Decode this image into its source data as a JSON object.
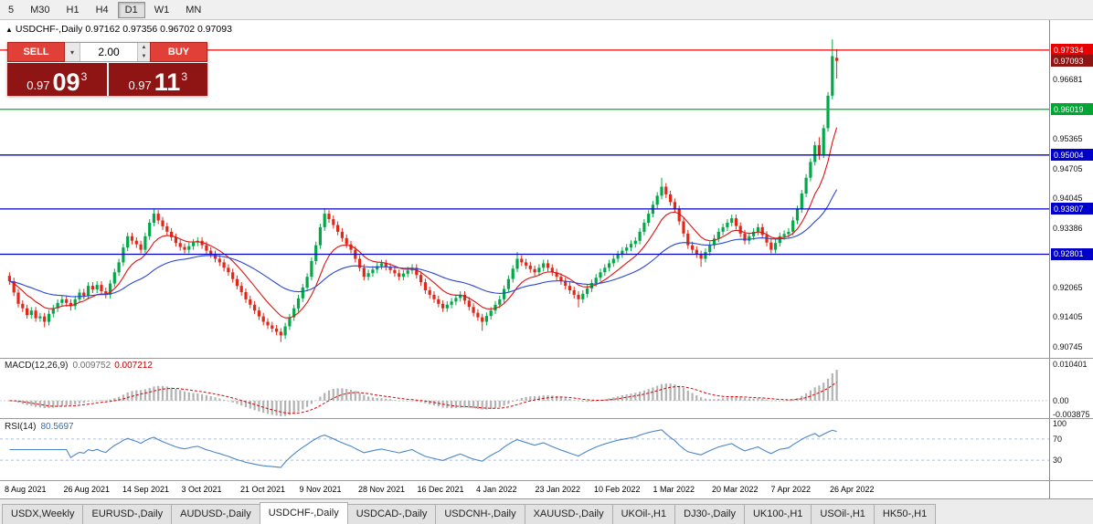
{
  "toolbar": {
    "timeframes": [
      {
        "label": "5",
        "active": false
      },
      {
        "label": "M30",
        "active": false
      },
      {
        "label": "H1",
        "active": false
      },
      {
        "label": "H4",
        "active": false
      },
      {
        "label": "D1",
        "active": true
      },
      {
        "label": "W1",
        "active": false
      },
      {
        "label": "MN",
        "active": false
      }
    ]
  },
  "chart": {
    "collapse_marker": "▲",
    "symbol": "USDCHF-,Daily",
    "ohlc": "0.97162 0.97356 0.96702 0.97093"
  },
  "trade_panel": {
    "sell_label": "SELL",
    "buy_label": "BUY",
    "volume": "2.00",
    "sell_price": {
      "prefix": "0.97",
      "big": "09",
      "sup": "3"
    },
    "buy_price": {
      "prefix": "0.97",
      "big": "11",
      "sup": "3"
    }
  },
  "tabs": {
    "items": [
      {
        "label": "USDX,Weekly",
        "active": false
      },
      {
        "label": "EURUSD-,Daily",
        "active": false
      },
      {
        "label": "AUDUSD-,Daily",
        "active": false
      },
      {
        "label": "USDCHF-,Daily",
        "active": true
      },
      {
        "label": "USDCAD-,Daily",
        "active": false
      },
      {
        "label": "USDCNH-,Daily",
        "active": false
      },
      {
        "label": "XAUUSD-,Daily",
        "active": false
      },
      {
        "label": "UKOil-,H1",
        "active": false
      },
      {
        "label": "DJ30-,Daily",
        "active": false
      },
      {
        "label": "UK100-,H1",
        "active": false
      },
      {
        "label": "USOil-,H1",
        "active": false
      },
      {
        "label": "HK50-,H1",
        "active": false
      }
    ]
  },
  "chart_data": {
    "type": "candlestick",
    "symbol": "USDCHF-",
    "timeframe": "Daily",
    "last_candle": {
      "open": 0.97162,
      "high": 0.97356,
      "low": 0.96702,
      "close": 0.97093
    },
    "price_range": [
      0.98,
      0.905
    ],
    "colors": {
      "up": "#00a847",
      "down": "#e22718",
      "macd_hist": "#b2b2b2",
      "macd_signal": "#d40000",
      "rsi_line": "#4b86c8",
      "rsi_levels": "#b0bfd8"
    },
    "hlines": [
      {
        "price": 0.97334,
        "color": "#e80000"
      },
      {
        "price": 0.96019,
        "color": "#00c838"
      },
      {
        "price": 0.95004,
        "color": "#0000c8"
      },
      {
        "price": 0.93807,
        "color": "#0000c8"
      },
      {
        "price": 0.92801,
        "color": "#0000c8"
      }
    ],
    "moving_averages": [
      {
        "period": 10,
        "color": "#dd1111"
      },
      {
        "period": 34,
        "color": "#2a46d4"
      }
    ],
    "price_axis": {
      "plain": [
        0.96681,
        0.95365,
        0.94705,
        0.94045,
        0.93386,
        0.92065,
        0.91405,
        0.90745
      ],
      "tags": [
        {
          "price": 0.97334,
          "label": "0.97334",
          "color": "#e80000"
        },
        {
          "price": 0.97093,
          "label": "0.97093",
          "color": "#8f1414"
        },
        {
          "price": 0.96019,
          "label": "0.96019",
          "color": "#00a535"
        },
        {
          "price": 0.95004,
          "label": "0.95004",
          "color": "#0000c8"
        },
        {
          "price": 0.93807,
          "label": "0.93807",
          "color": "#0000c8"
        },
        {
          "price": 0.92801,
          "label": "0.92801",
          "color": "#0000c8"
        }
      ]
    },
    "macd": {
      "label": "MACD(12,26,9)",
      "value_main": "0.009752",
      "value_signal": "0.007212",
      "params": [
        12,
        26,
        9
      ],
      "range": [
        0.012,
        -0.005
      ],
      "axis": [
        {
          "value": 0.010401,
          "label": "0.010401"
        },
        {
          "value": 0,
          "label": "0.00"
        },
        {
          "value": -0.003875,
          "label": "-0.003875"
        }
      ]
    },
    "rsi": {
      "label": "RSI(14)",
      "value_text": "80.5697",
      "period": 14,
      "level_lines": [
        70,
        30
      ],
      "axis": [
        {
          "value": 100,
          "label": "100"
        },
        {
          "value": 70,
          "label": "70"
        },
        {
          "value": 30,
          "label": "30"
        }
      ]
    },
    "dates": [
      "8 Aug 2021",
      "26 Aug 2021",
      "14 Sep 2021",
      "3 Oct 2021",
      "21 Oct 2021",
      "9 Nov 2021",
      "28 Nov 2021",
      "16 Dec 2021",
      "4 Jan 2022",
      "23 Jan 2022",
      "10 Feb 2022",
      "1 Mar 2022",
      "20 Mar 2022",
      "7 Apr 2022",
      "26 Apr 2022"
    ],
    "candles": [
      [
        0.9232,
        0.924,
        0.9212,
        0.922
      ],
      [
        0.922,
        0.9228,
        0.9187,
        0.9195
      ],
      [
        0.9195,
        0.9203,
        0.9162,
        0.917
      ],
      [
        0.917,
        0.9178,
        0.9152,
        0.916
      ],
      [
        0.916,
        0.9168,
        0.9137,
        0.9145
      ],
      [
        0.9145,
        0.9163,
        0.9137,
        0.9155
      ],
      [
        0.9155,
        0.9163,
        0.913,
        0.9138
      ],
      [
        0.9138,
        0.915,
        0.913,
        0.9142
      ],
      [
        0.9142,
        0.915,
        0.9118,
        0.913
      ],
      [
        0.913,
        0.9156,
        0.9122,
        0.9148
      ],
      [
        0.9148,
        0.9168,
        0.914,
        0.916
      ],
      [
        0.916,
        0.918,
        0.9152,
        0.9172
      ],
      [
        0.9172,
        0.9188,
        0.9164,
        0.918
      ],
      [
        0.918,
        0.9188,
        0.9164,
        0.9172
      ],
      [
        0.9172,
        0.918,
        0.9155,
        0.9165
      ],
      [
        0.9165,
        0.9188,
        0.9157,
        0.918
      ],
      [
        0.918,
        0.9203,
        0.9172,
        0.9195
      ],
      [
        0.9195,
        0.9203,
        0.918,
        0.9188
      ],
      [
        0.9188,
        0.9218,
        0.918,
        0.921
      ],
      [
        0.921,
        0.9218,
        0.9194,
        0.9202
      ],
      [
        0.9202,
        0.922,
        0.9194,
        0.9212
      ],
      [
        0.9212,
        0.922,
        0.919,
        0.9198
      ],
      [
        0.9198,
        0.9206,
        0.9182,
        0.919
      ],
      [
        0.919,
        0.9223,
        0.9182,
        0.9215
      ],
      [
        0.9215,
        0.9248,
        0.9207,
        0.924
      ],
      [
        0.924,
        0.927,
        0.9232,
        0.9262
      ],
      [
        0.9262,
        0.9303,
        0.9254,
        0.9295
      ],
      [
        0.9295,
        0.9328,
        0.9287,
        0.932
      ],
      [
        0.932,
        0.9328,
        0.9302,
        0.931
      ],
      [
        0.931,
        0.9318,
        0.9294,
        0.9302
      ],
      [
        0.9302,
        0.931,
        0.9282,
        0.929
      ],
      [
        0.929,
        0.9328,
        0.9282,
        0.932
      ],
      [
        0.932,
        0.9358,
        0.9312,
        0.935
      ],
      [
        0.935,
        0.938,
        0.9342,
        0.937
      ],
      [
        0.937,
        0.9378,
        0.9347,
        0.9355
      ],
      [
        0.9355,
        0.9363,
        0.9334,
        0.9342
      ],
      [
        0.9342,
        0.935,
        0.9322,
        0.933
      ],
      [
        0.933,
        0.9338,
        0.931,
        0.9318
      ],
      [
        0.9318,
        0.9326,
        0.9297,
        0.9305
      ],
      [
        0.9305,
        0.9313,
        0.9288,
        0.9296
      ],
      [
        0.9296,
        0.9304,
        0.9282,
        0.929
      ],
      [
        0.929,
        0.9306,
        0.9282,
        0.9298
      ],
      [
        0.9298,
        0.9314,
        0.929,
        0.9306
      ],
      [
        0.9306,
        0.9318,
        0.9298,
        0.931
      ],
      [
        0.931,
        0.9318,
        0.9292,
        0.93
      ],
      [
        0.93,
        0.9308,
        0.928,
        0.9288
      ],
      [
        0.9288,
        0.9296,
        0.9272,
        0.928
      ],
      [
        0.928,
        0.9288,
        0.9262,
        0.927
      ],
      [
        0.927,
        0.9278,
        0.9254,
        0.9262
      ],
      [
        0.9262,
        0.927,
        0.9242,
        0.925
      ],
      [
        0.925,
        0.9258,
        0.9232,
        0.924
      ],
      [
        0.924,
        0.9248,
        0.9217,
        0.9225
      ],
      [
        0.9225,
        0.9233,
        0.9202,
        0.921
      ],
      [
        0.921,
        0.9218,
        0.9188,
        0.9196
      ],
      [
        0.9196,
        0.9204,
        0.9172,
        0.918
      ],
      [
        0.918,
        0.9188,
        0.916,
        0.9168
      ],
      [
        0.9168,
        0.9176,
        0.9147,
        0.9155
      ],
      [
        0.9155,
        0.9163,
        0.9134,
        0.9142
      ],
      [
        0.9142,
        0.915,
        0.9122,
        0.913
      ],
      [
        0.913,
        0.9138,
        0.9114,
        0.9122
      ],
      [
        0.9122,
        0.913,
        0.9107,
        0.9115
      ],
      [
        0.9115,
        0.9123,
        0.91,
        0.9108
      ],
      [
        0.9108,
        0.9116,
        0.9085,
        0.91
      ],
      [
        0.91,
        0.9128,
        0.9092,
        0.912
      ],
      [
        0.912,
        0.9148,
        0.9112,
        0.914
      ],
      [
        0.914,
        0.9168,
        0.9132,
        0.916
      ],
      [
        0.916,
        0.919,
        0.9152,
        0.9182
      ],
      [
        0.9182,
        0.9214,
        0.9174,
        0.9206
      ],
      [
        0.9206,
        0.9238,
        0.9198,
        0.923
      ],
      [
        0.923,
        0.9273,
        0.9222,
        0.9265
      ],
      [
        0.9265,
        0.9308,
        0.9257,
        0.93
      ],
      [
        0.93,
        0.9348,
        0.9292,
        0.934
      ],
      [
        0.934,
        0.9382,
        0.9332,
        0.937
      ],
      [
        0.937,
        0.9378,
        0.935,
        0.9358
      ],
      [
        0.9358,
        0.9366,
        0.9337,
        0.9345
      ],
      [
        0.9345,
        0.9353,
        0.9322,
        0.933
      ],
      [
        0.933,
        0.9338,
        0.9308,
        0.9316
      ],
      [
        0.9316,
        0.9324,
        0.9294,
        0.9302
      ],
      [
        0.9302,
        0.931,
        0.9282,
        0.929
      ],
      [
        0.929,
        0.9298,
        0.9262,
        0.927
      ],
      [
        0.927,
        0.9278,
        0.9242,
        0.925
      ],
      [
        0.925,
        0.9258,
        0.9222,
        0.923
      ],
      [
        0.923,
        0.9246,
        0.9222,
        0.9238
      ],
      [
        0.9238,
        0.9254,
        0.923,
        0.9246
      ],
      [
        0.9246,
        0.9262,
        0.9238,
        0.9254
      ],
      [
        0.9254,
        0.9268,
        0.9246,
        0.926
      ],
      [
        0.926,
        0.9268,
        0.9244,
        0.9252
      ],
      [
        0.9252,
        0.926,
        0.9237,
        0.9245
      ],
      [
        0.9245,
        0.9253,
        0.923,
        0.9238
      ],
      [
        0.9238,
        0.9246,
        0.9222,
        0.923
      ],
      [
        0.923,
        0.9245,
        0.9222,
        0.9237
      ],
      [
        0.9237,
        0.9252,
        0.9229,
        0.9244
      ],
      [
        0.9244,
        0.9258,
        0.9236,
        0.925
      ],
      [
        0.925,
        0.9258,
        0.9226,
        0.9234
      ],
      [
        0.9234,
        0.9242,
        0.921,
        0.9218
      ],
      [
        0.9218,
        0.9226,
        0.9192,
        0.92
      ],
      [
        0.92,
        0.9208,
        0.9182,
        0.919
      ],
      [
        0.919,
        0.9198,
        0.9172,
        0.918
      ],
      [
        0.918,
        0.9188,
        0.9162,
        0.917
      ],
      [
        0.917,
        0.9178,
        0.9152,
        0.916
      ],
      [
        0.916,
        0.9176,
        0.9152,
        0.9168
      ],
      [
        0.9168,
        0.9183,
        0.916,
        0.9175
      ],
      [
        0.9175,
        0.9191,
        0.9167,
        0.9183
      ],
      [
        0.9183,
        0.9198,
        0.9175,
        0.919
      ],
      [
        0.919,
        0.9198,
        0.9169,
        0.9177
      ],
      [
        0.9177,
        0.9185,
        0.9155,
        0.9163
      ],
      [
        0.9163,
        0.9171,
        0.9142,
        0.915
      ],
      [
        0.915,
        0.9158,
        0.9132,
        0.914
      ],
      [
        0.914,
        0.9148,
        0.911,
        0.913
      ],
      [
        0.913,
        0.9151,
        0.9122,
        0.9143
      ],
      [
        0.9143,
        0.9163,
        0.9135,
        0.9155
      ],
      [
        0.9155,
        0.9176,
        0.9147,
        0.9168
      ],
      [
        0.9168,
        0.9188,
        0.916,
        0.918
      ],
      [
        0.918,
        0.9211,
        0.9172,
        0.9203
      ],
      [
        0.9203,
        0.9233,
        0.9195,
        0.9225
      ],
      [
        0.9225,
        0.9256,
        0.9217,
        0.9248
      ],
      [
        0.9248,
        0.9285,
        0.924,
        0.927
      ],
      [
        0.927,
        0.9278,
        0.9254,
        0.9262
      ],
      [
        0.9262,
        0.927,
        0.9247,
        0.9255
      ],
      [
        0.9255,
        0.9263,
        0.9239,
        0.9247
      ],
      [
        0.9247,
        0.9255,
        0.9232,
        0.924
      ],
      [
        0.924,
        0.9258,
        0.9232,
        0.925
      ],
      [
        0.925,
        0.9268,
        0.9242,
        0.926
      ],
      [
        0.926,
        0.9268,
        0.9242,
        0.925
      ],
      [
        0.925,
        0.9258,
        0.9232,
        0.924
      ],
      [
        0.924,
        0.9248,
        0.9222,
        0.923
      ],
      [
        0.923,
        0.9238,
        0.9212,
        0.922
      ],
      [
        0.922,
        0.9228,
        0.9202,
        0.921
      ],
      [
        0.921,
        0.9218,
        0.9192,
        0.92
      ],
      [
        0.92,
        0.9208,
        0.9182,
        0.919
      ],
      [
        0.919,
        0.9198,
        0.9162,
        0.918
      ],
      [
        0.918,
        0.92,
        0.9172,
        0.9192
      ],
      [
        0.9192,
        0.9212,
        0.9184,
        0.9204
      ],
      [
        0.9204,
        0.9224,
        0.9196,
        0.9216
      ],
      [
        0.9216,
        0.9236,
        0.9208,
        0.9228
      ],
      [
        0.9228,
        0.9248,
        0.922,
        0.924
      ],
      [
        0.924,
        0.9258,
        0.9232,
        0.925
      ],
      [
        0.925,
        0.9268,
        0.9242,
        0.926
      ],
      [
        0.926,
        0.9278,
        0.9252,
        0.927
      ],
      [
        0.927,
        0.9288,
        0.9262,
        0.928
      ],
      [
        0.928,
        0.9296,
        0.9272,
        0.9288
      ],
      [
        0.9288,
        0.9303,
        0.928,
        0.9295
      ],
      [
        0.9295,
        0.9311,
        0.9287,
        0.9303
      ],
      [
        0.9303,
        0.9318,
        0.9295,
        0.931
      ],
      [
        0.931,
        0.9338,
        0.9302,
        0.933
      ],
      [
        0.933,
        0.9358,
        0.9322,
        0.935
      ],
      [
        0.935,
        0.9378,
        0.9342,
        0.937
      ],
      [
        0.937,
        0.9398,
        0.9362,
        0.939
      ],
      [
        0.939,
        0.9418,
        0.9382,
        0.941
      ],
      [
        0.941,
        0.945,
        0.9402,
        0.943
      ],
      [
        0.943,
        0.9438,
        0.9405,
        0.9413
      ],
      [
        0.9413,
        0.9421,
        0.9388,
        0.9396
      ],
      [
        0.9396,
        0.9404,
        0.9372,
        0.938
      ],
      [
        0.938,
        0.9388,
        0.9345,
        0.9353
      ],
      [
        0.9353,
        0.9361,
        0.9318,
        0.9326
      ],
      [
        0.9326,
        0.9334,
        0.9292,
        0.93
      ],
      [
        0.93,
        0.9308,
        0.9282,
        0.929
      ],
      [
        0.929,
        0.9298,
        0.9272,
        0.928
      ],
      [
        0.928,
        0.9288,
        0.9252,
        0.927
      ],
      [
        0.927,
        0.9293,
        0.9262,
        0.9285
      ],
      [
        0.9285,
        0.9308,
        0.9277,
        0.93
      ],
      [
        0.93,
        0.9323,
        0.9292,
        0.9315
      ],
      [
        0.9315,
        0.9338,
        0.9307,
        0.933
      ],
      [
        0.933,
        0.9348,
        0.9322,
        0.934
      ],
      [
        0.934,
        0.9358,
        0.9332,
        0.935
      ],
      [
        0.935,
        0.9368,
        0.9342,
        0.936
      ],
      [
        0.936,
        0.9368,
        0.9335,
        0.9343
      ],
      [
        0.9343,
        0.9351,
        0.9318,
        0.9326
      ],
      [
        0.9326,
        0.9334,
        0.9302,
        0.931
      ],
      [
        0.931,
        0.9328,
        0.9302,
        0.932
      ],
      [
        0.932,
        0.9338,
        0.9312,
        0.933
      ],
      [
        0.933,
        0.9348,
        0.9322,
        0.934
      ],
      [
        0.934,
        0.9348,
        0.9315,
        0.9323
      ],
      [
        0.9323,
        0.9331,
        0.9298,
        0.9306
      ],
      [
        0.9306,
        0.9314,
        0.9282,
        0.929
      ],
      [
        0.929,
        0.9313,
        0.9282,
        0.9305
      ],
      [
        0.9305,
        0.9328,
        0.9297,
        0.932
      ],
      [
        0.932,
        0.9333,
        0.9312,
        0.9325
      ],
      [
        0.9325,
        0.9338,
        0.9317,
        0.933
      ],
      [
        0.933,
        0.9363,
        0.9322,
        0.9355
      ],
      [
        0.9355,
        0.9388,
        0.9347,
        0.938
      ],
      [
        0.938,
        0.9423,
        0.9372,
        0.9415
      ],
      [
        0.9415,
        0.9458,
        0.9407,
        0.945
      ],
      [
        0.945,
        0.9493,
        0.9442,
        0.9485
      ],
      [
        0.9485,
        0.953,
        0.9477,
        0.9522
      ],
      [
        0.9522,
        0.954,
        0.949,
        0.9502
      ],
      [
        0.9502,
        0.9568,
        0.9494,
        0.956
      ],
      [
        0.956,
        0.964,
        0.9552,
        0.9632
      ],
      [
        0.9632,
        0.9757,
        0.9624,
        0.972
      ],
      [
        0.97162,
        0.97356,
        0.96702,
        0.97093
      ]
    ]
  }
}
